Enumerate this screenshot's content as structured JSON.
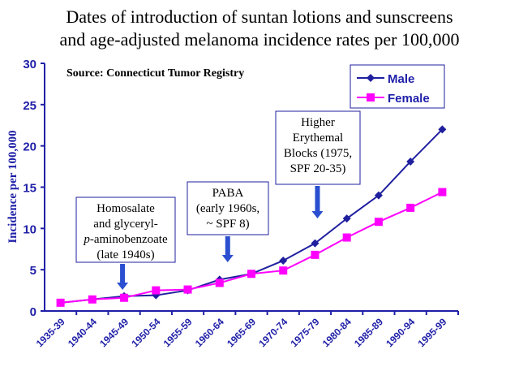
{
  "chart_data": {
    "type": "line",
    "title": [
      "Dates of introduction of suntan lotions and sunscreens",
      "and age-adjusted melanoma incidence rates per 100,000"
    ],
    "source": "Source: Connecticut Tumor Registry",
    "ylabel": "Incidence per 100,000",
    "xlabel": "",
    "ylim": [
      0,
      30
    ],
    "yticks": [
      "0",
      "5",
      "10",
      "15",
      "20",
      "25",
      "30"
    ],
    "grid": false,
    "legend_position": "top-right",
    "categories": [
      "1935-39",
      "1940-44",
      "1945-49",
      "1950-54",
      "1955-59",
      "1960-64",
      "1965-69",
      "1970-74",
      "1975-79",
      "1980-84",
      "1985-89",
      "1990-94",
      "1995-99"
    ],
    "series": [
      {
        "name": "Male",
        "color": "#1f1f9f",
        "marker": "diamond",
        "values": [
          1.0,
          1.4,
          1.8,
          1.9,
          2.5,
          3.8,
          4.5,
          6.1,
          8.2,
          11.2,
          14.0,
          18.1,
          22.0
        ]
      },
      {
        "name": "Female",
        "color": "#ff00ff",
        "marker": "square",
        "values": [
          1.0,
          1.4,
          1.6,
          2.5,
          2.6,
          3.4,
          4.5,
          4.9,
          6.8,
          8.9,
          10.8,
          12.5,
          14.4
        ]
      }
    ],
    "annotations": [
      {
        "lines": [
          "Homosalate",
          "and glyceryl-",
          "p-aminobenzoate",
          "(late 1940s)"
        ],
        "category": "1945-49"
      },
      {
        "lines": [
          "PABA",
          "(early 1960s,",
          "~ SPF 8)"
        ],
        "category": "1960-64"
      },
      {
        "lines": [
          "Higher",
          "Erythemal",
          "Blocks (1975,",
          "SPF 20-35)"
        ],
        "category": "1975-79"
      }
    ]
  }
}
